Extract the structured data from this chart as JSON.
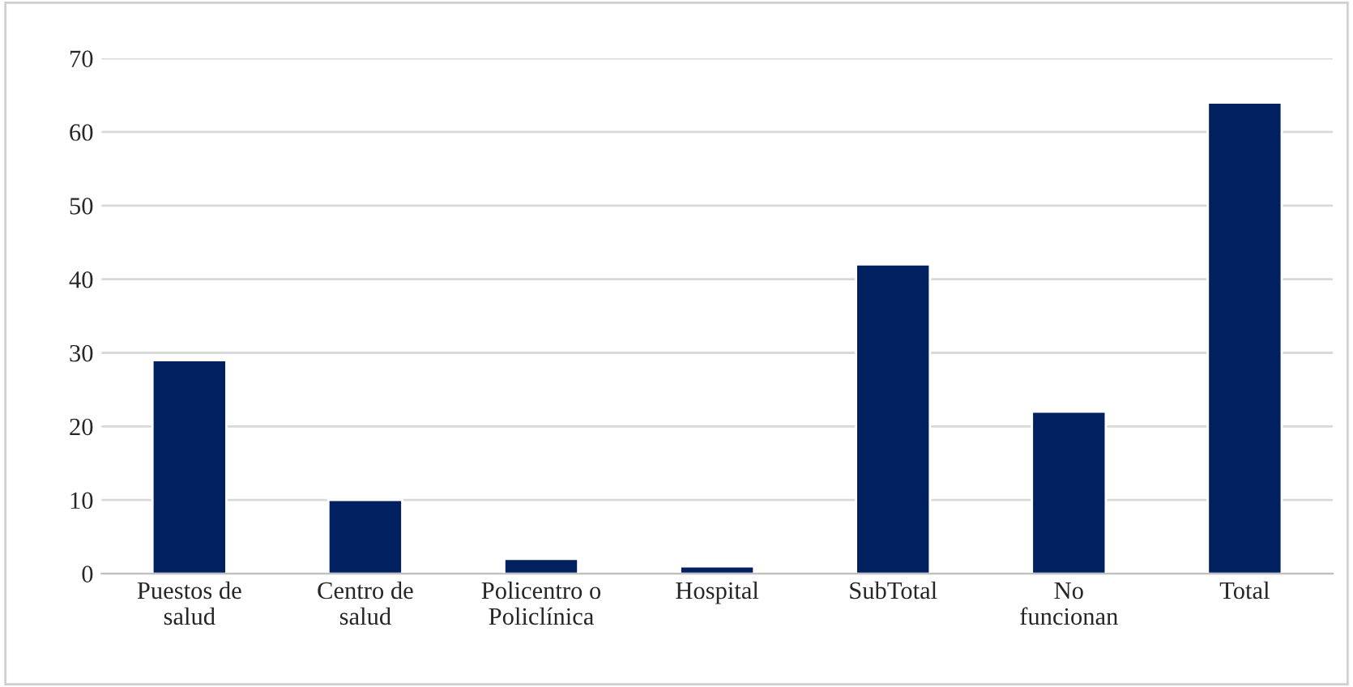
{
  "chart_data": {
    "type": "bar",
    "categories": [
      "Puestos de\nsalud",
      "Centro de\nsalud",
      "Policentro o\nPoliclínica",
      "Hospital",
      "SubTotal",
      "No\nfuncionan",
      "Total"
    ],
    "values": [
      29,
      10,
      2,
      1,
      42,
      22,
      64
    ],
    "color": "#002060",
    "ylim": [
      0,
      70
    ],
    "yticks": [
      0,
      10,
      20,
      30,
      40,
      50,
      60,
      70
    ],
    "grid": "y"
  }
}
